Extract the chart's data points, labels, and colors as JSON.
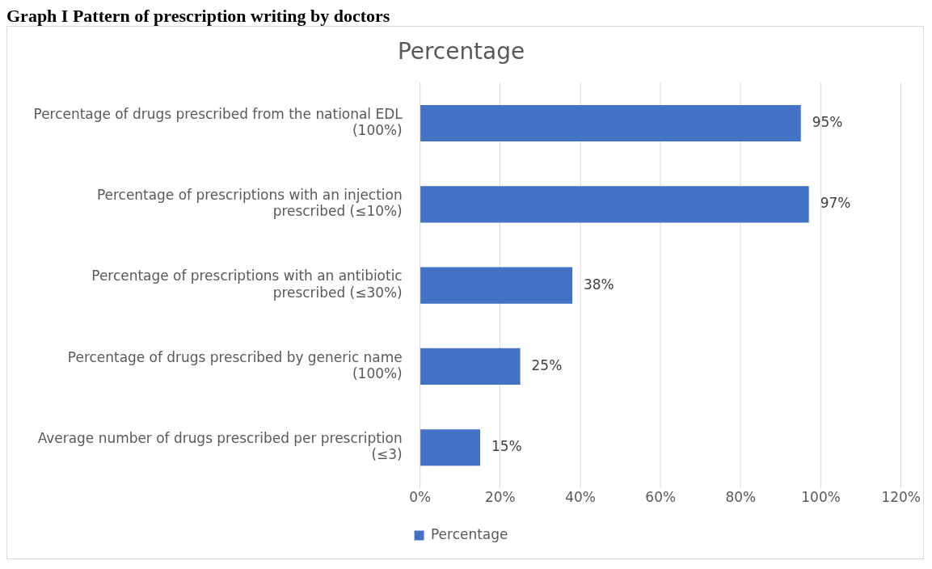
{
  "chart_data": {
    "type": "bar",
    "orientation": "horizontal",
    "title": "Percentage",
    "annotations": [
      "Graph I Pattern of prescription writing by doctors"
    ],
    "categories": [
      "Percentage of drugs prescribed from the national EDL (100%)",
      "Percentage of prescriptions with an injection prescribed (≤10%)",
      "Percentage of prescriptions with an antibiotic prescribed (≤30%)",
      "Percentage of drugs prescribed by generic name (100%)",
      "Average number of drugs prescribed per prescription (≤3)"
    ],
    "series": [
      {
        "name": "Percentage",
        "color": "#4472c4",
        "values": [
          95,
          97,
          38,
          25,
          15
        ],
        "value_labels": [
          "95%",
          "97%",
          "38%",
          "25%",
          "15%"
        ]
      }
    ],
    "xlim": [
      0,
      120
    ],
    "xticks": [
      {
        "value": 0,
        "label": "0%"
      },
      {
        "value": 20,
        "label": "20%"
      },
      {
        "value": 40,
        "label": "40%"
      },
      {
        "value": 60,
        "label": "60%"
      },
      {
        "value": 80,
        "label": "80%"
      },
      {
        "value": 100,
        "label": "100%"
      },
      {
        "value": 120,
        "label": "120%"
      }
    ],
    "grid": "x",
    "legend": "bottom"
  }
}
